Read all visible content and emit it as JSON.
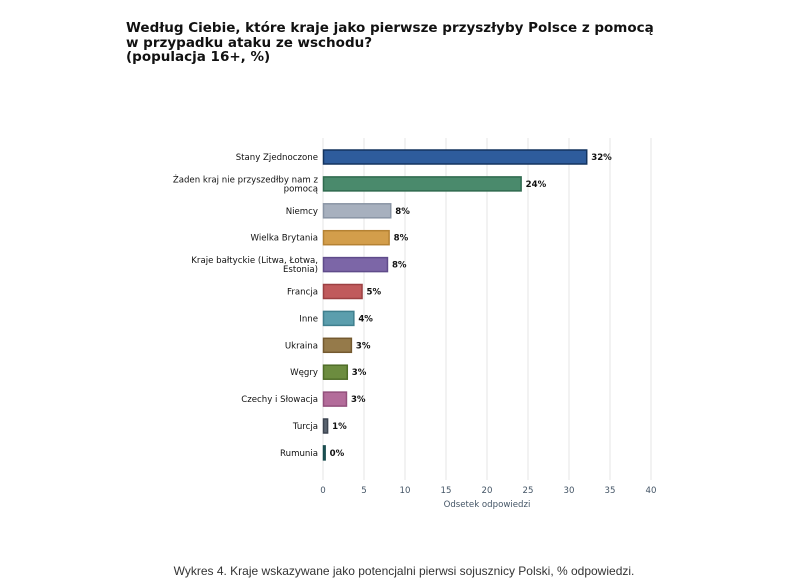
{
  "chart_data": {
    "type": "bar",
    "orientation": "horizontal",
    "title": "Według Ciebie, które kraje jako pierwsze przyszłyby Polsce z pomocą\nw przypadku ataku ze wschodu?\n(populacja 16+, %)",
    "xlabel": "Odsetek odpowiedzi",
    "ylabel": "",
    "xlim": [
      0,
      40
    ],
    "xticks": [
      0,
      5,
      10,
      15,
      20,
      25,
      30,
      35,
      40
    ],
    "grid": true,
    "categories": [
      [
        "Stany Zjednoczone"
      ],
      [
        "Żaden kraj nie przyszedłby nam z",
        "pomocą"
      ],
      [
        "Niemcy"
      ],
      [
        "Wielka Brytania"
      ],
      [
        "Kraje bałtyckie (Litwa, Łotwa,",
        "Estonia)"
      ],
      [
        "Francja"
      ],
      [
        "Inne"
      ],
      [
        "Ukraina"
      ],
      [
        "Węgry"
      ],
      [
        "Czechy i Słowacja"
      ],
      [
        "Turcja"
      ],
      [
        "Rumunia"
      ]
    ],
    "values": [
      32.1,
      24.1,
      8.2,
      8.0,
      7.8,
      4.7,
      3.7,
      3.4,
      2.9,
      2.8,
      0.5,
      0.2
    ],
    "value_labels": [
      "32%",
      "24%",
      "8%",
      "8%",
      "8%",
      "5%",
      "4%",
      "3%",
      "3%",
      "3%",
      "1%",
      "0%"
    ],
    "colors": [
      "#2e5c9c",
      "#4a8a6c",
      "#a7b0be",
      "#d39e4b",
      "#7c66a7",
      "#c05a5c",
      "#5b9ead",
      "#957a4a",
      "#6c8c3f",
      "#b36c9a",
      "#5a6470",
      "#2e6a6c"
    ],
    "border_colors": [
      "#13335f",
      "#2f6a4f",
      "#8a95a5",
      "#b58233",
      "#5f4b8a",
      "#9c4042",
      "#3f7f8e",
      "#74592f",
      "#4f6d28",
      "#93507c",
      "#3c4450",
      "#174a4c"
    ]
  },
  "caption": "Wykres 4. Kraje wskazywane jako potencjalni pierwsi sojusznicy Polski, % odpowiedzi."
}
